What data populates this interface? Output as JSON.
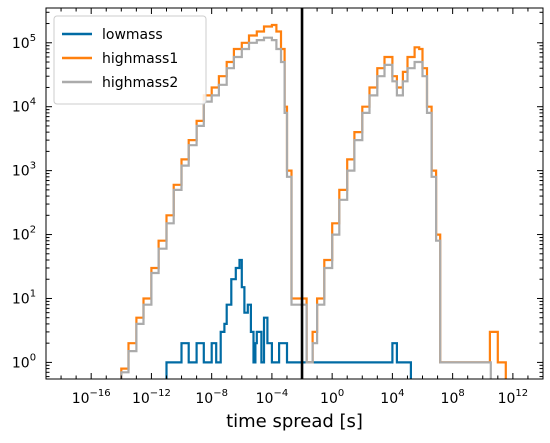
{
  "chart_data": {
    "type": "line",
    "xlabel": "time spread [s]",
    "ylabel": "",
    "x_scale": "log",
    "y_scale": "log",
    "xlim": [
      1e-19,
      100000000000000.0
    ],
    "ylim": [
      0.55,
      350000
    ],
    "grid": false,
    "legend_position": "top-left",
    "x_ticks": [
      {
        "value": 1e-16,
        "base": "10",
        "exp": "−16"
      },
      {
        "value": 1e-12,
        "base": "10",
        "exp": "−12"
      },
      {
        "value": 1e-08,
        "base": "10",
        "exp": "−8"
      },
      {
        "value": 0.0001,
        "base": "10",
        "exp": "−4"
      },
      {
        "value": 1,
        "base": "10",
        "exp": "0"
      },
      {
        "value": 10000.0,
        "base": "10",
        "exp": "4"
      },
      {
        "value": 100000000.0,
        "base": "10",
        "exp": "8"
      },
      {
        "value": 1000000000000.0,
        "base": "10",
        "exp": "12"
      }
    ],
    "y_ticks": [
      {
        "value": 1,
        "base": "10",
        "exp": "0"
      },
      {
        "value": 10,
        "base": "10",
        "exp": "1"
      },
      {
        "value": 100,
        "base": "10",
        "exp": "2"
      },
      {
        "value": 1000,
        "base": "10",
        "exp": "3"
      },
      {
        "value": 10000,
        "base": "10",
        "exp": "4"
      },
      {
        "value": 100000,
        "base": "10",
        "exp": "5"
      }
    ],
    "vertical_line": {
      "x": 0.01,
      "color": "#000000"
    },
    "series": [
      {
        "name": "lowmass",
        "color": "#006BA4",
        "x": [
          1e-11,
          1e-10,
          3e-10,
          1e-09,
          3e-09,
          1e-08,
          2e-08,
          4e-08,
          7e-08,
          1e-07,
          2e-07,
          4e-07,
          7e-07,
          1e-06,
          1.5e-06,
          2.5e-06,
          4e-06,
          6e-06,
          8e-06,
          1e-05,
          2e-05,
          3e-05,
          5e-05,
          0.0001,
          0.0003,
          0.001,
          5000.0,
          10000.0,
          20000.0,
          50000.0
        ],
        "y": [
          1,
          2,
          1,
          2,
          1,
          2,
          1,
          3,
          4,
          8,
          20,
          30,
          40,
          15,
          6,
          8,
          3,
          1,
          2,
          3,
          1,
          5,
          2,
          1,
          2,
          1,
          1,
          2,
          1,
          1
        ]
      },
      {
        "name": "highmass1",
        "color": "#FF800E",
        "x": [
          1e-14,
          3e-14,
          1e-13,
          3e-13,
          1e-12,
          3e-12,
          1e-11,
          3e-11,
          1e-10,
          3e-10,
          1e-09,
          3e-09,
          1e-08,
          3e-08,
          1e-07,
          3e-07,
          1e-06,
          3e-06,
          1e-05,
          3e-05,
          0.0001,
          0.0002,
          0.0004,
          0.0007,
          0.001,
          0.002,
          0.02,
          0.05,
          0.1,
          0.3,
          1,
          3,
          10,
          30,
          100,
          300,
          1000.0,
          3000.0,
          10000.0,
          20000.0,
          50000.0,
          100000.0,
          300000.0,
          600000.0,
          1000000.0,
          2000000.0,
          4000000.0,
          8000000.0,
          15000000.0,
          10000000000.0,
          30000000000.0,
          100000000000.0
        ],
        "y": [
          0.8,
          2,
          5,
          10,
          30,
          80,
          200,
          600,
          1500,
          3000,
          6000,
          15000,
          20000,
          30000,
          50000,
          80000,
          100000,
          130000,
          150000,
          180000,
          190000,
          150000,
          80000,
          10000,
          1000,
          10,
          1,
          3,
          10,
          40,
          150,
          500,
          1500,
          4000,
          10000,
          20000,
          40000,
          60000,
          30000,
          20000,
          35000,
          60000,
          85000,
          80000,
          40000,
          10000,
          1000,
          100,
          1,
          1,
          3,
          1
        ]
      },
      {
        "name": "highmass2",
        "color": "#ABABAB",
        "x": [
          1e-14,
          3e-14,
          1e-13,
          3e-13,
          1e-12,
          3e-12,
          1e-11,
          3e-11,
          1e-10,
          3e-10,
          1e-09,
          3e-09,
          1e-08,
          3e-08,
          1e-07,
          3e-07,
          1e-06,
          3e-06,
          1e-05,
          3e-05,
          0.0001,
          0.0002,
          0.0004,
          0.0007,
          0.001,
          0.002,
          0.02,
          0.05,
          0.1,
          0.3,
          1,
          3,
          10,
          30,
          100,
          300,
          1000.0,
          3000.0,
          10000.0,
          20000.0,
          50000.0,
          100000.0,
          300000.0,
          600000.0,
          1000000.0,
          2000000.0,
          4000000.0,
          8000000.0,
          15000000.0,
          1000000000.0,
          10000000000.0
        ],
        "y": [
          0.7,
          1.5,
          4,
          8,
          25,
          60,
          150,
          500,
          1200,
          2500,
          5000,
          12000,
          15000,
          22000,
          40000,
          60000,
          80000,
          100000,
          110000,
          120000,
          110000,
          80000,
          50000,
          8000,
          800,
          8,
          1,
          2,
          8,
          30,
          100,
          350,
          1000,
          3000,
          8000,
          15000,
          30000,
          45000,
          25000,
          15000,
          25000,
          40000,
          50000,
          50000,
          30000,
          8000,
          800,
          80,
          1,
          1,
          1
        ]
      }
    ]
  }
}
